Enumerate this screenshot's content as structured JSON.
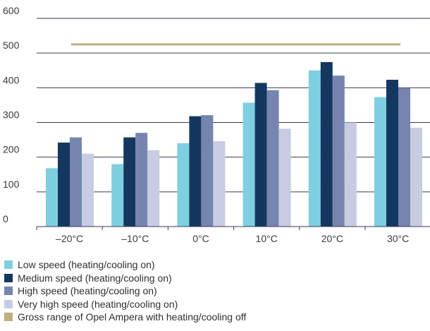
{
  "chart_data": {
    "type": "bar",
    "categories": [
      "–20°C",
      "–10°C",
      "0°C",
      "10°C",
      "20°C",
      "30°C"
    ],
    "ylim": [
      0,
      600
    ],
    "yticks": [
      0,
      100,
      200,
      300,
      400,
      500,
      600
    ],
    "grid": true,
    "legend_position": "bottom-left",
    "series": [
      {
        "name": "Low speed (heating/cooling on)",
        "color": "#7ecfe0",
        "values": [
          168,
          180,
          240,
          357,
          450,
          373
        ]
      },
      {
        "name": "Medium speed (heating/cooling on)",
        "color": "#14375f",
        "values": [
          242,
          257,
          318,
          414,
          474,
          423
        ]
      },
      {
        "name": "High speed (heating/cooling on)",
        "color": "#7585b0",
        "values": [
          257,
          270,
          321,
          393,
          435,
          399
        ]
      },
      {
        "name": "Very high speed (heating/cooling on)",
        "color": "#c8cce2",
        "values": [
          210,
          220,
          246,
          282,
          300,
          285
        ]
      }
    ],
    "reference_line": {
      "name": "Gross range of Opel Ampera with heating/cooling off",
      "color": "#bfae7f",
      "value": 525
    }
  }
}
